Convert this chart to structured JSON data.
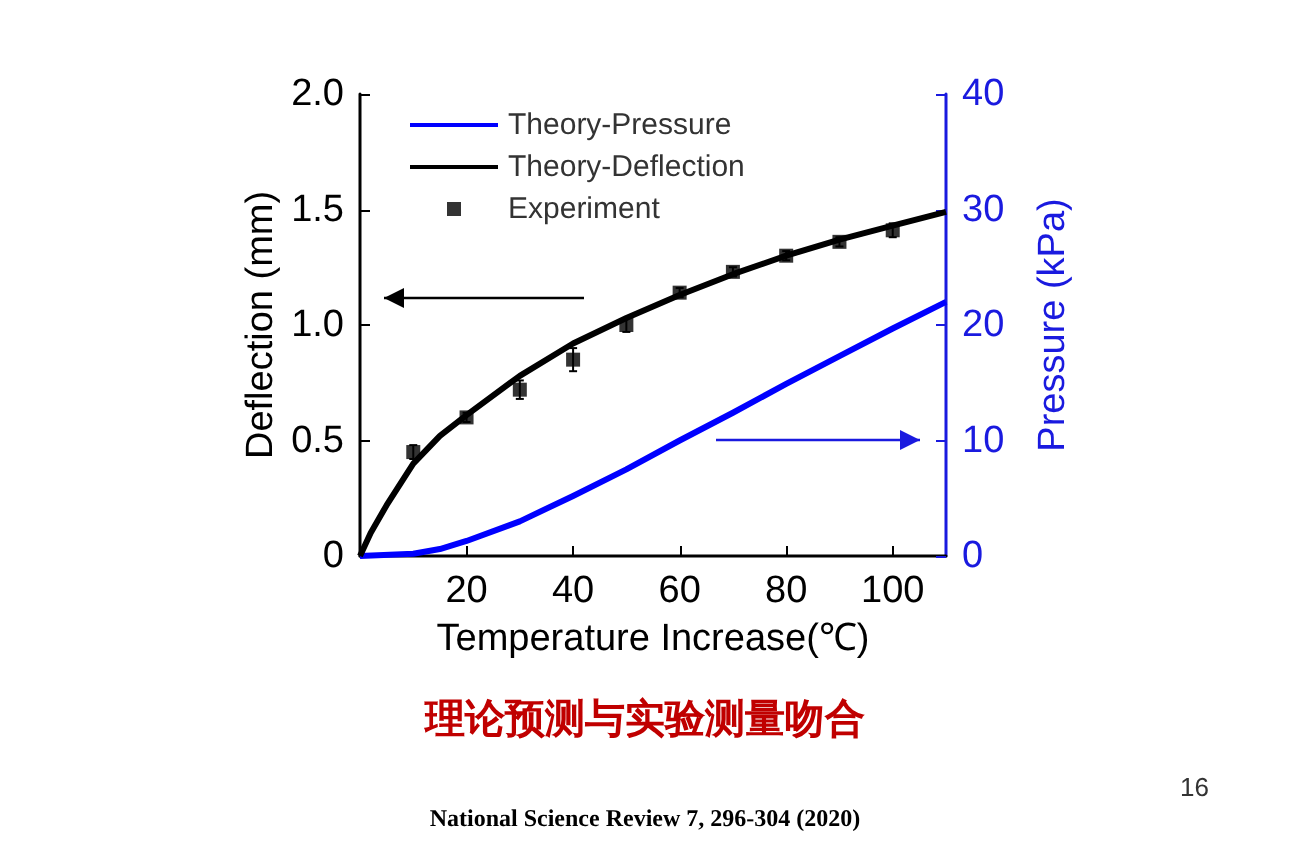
{
  "chart_data": {
    "type": "line",
    "xlabel": "Temperature Increase(℃)",
    "ylabel": "Deflection (mm)",
    "y2label": "Pressure (kPa)",
    "xlim": [
      0,
      110
    ],
    "xticks": [
      20,
      40,
      60,
      80,
      100
    ],
    "ylim": [
      0,
      2.0
    ],
    "yticks": [
      {
        "value": 0,
        "label": "0"
      },
      {
        "value": 0.5,
        "label": "0.5"
      },
      {
        "value": 1.0,
        "label": "1.0"
      },
      {
        "value": 1.5,
        "label": "1.5"
      },
      {
        "value": 2.0,
        "label": "2.0"
      }
    ],
    "y2lim": [
      0,
      40
    ],
    "y2ticks": [
      0,
      10,
      20,
      30,
      40
    ],
    "grid": false,
    "legend": "top left",
    "series": [
      {
        "name": "Theory-Pressure",
        "axis": "y2",
        "color": "#0000ff",
        "marker": "none",
        "line_style": "solid",
        "x": [
          0,
          10,
          15,
          20,
          30,
          40,
          50,
          60,
          70,
          80,
          90,
          100,
          110
        ],
        "values": [
          0,
          0.2,
          0.6,
          1.3,
          3,
          5.2,
          7.5,
          10,
          12.4,
          14.9,
          17.3,
          19.7,
          22
        ]
      },
      {
        "name": "Theory-Deflection",
        "color": "#000000",
        "marker": "none",
        "line_style": "solid",
        "x": [
          0,
          2,
          5,
          10,
          15,
          20,
          30,
          40,
          50,
          60,
          70,
          80,
          90,
          100,
          110
        ],
        "values": [
          0,
          0.1,
          0.22,
          0.4,
          0.52,
          0.61,
          0.78,
          0.92,
          1.03,
          1.13,
          1.22,
          1.3,
          1.37,
          1.43,
          1.49
        ]
      },
      {
        "name": "Experiment",
        "type": "scatter",
        "color": "#000000",
        "marker": "square",
        "x": [
          10,
          20,
          30,
          40,
          50,
          60,
          70,
          80,
          90,
          100
        ],
        "values": [
          0.45,
          0.6,
          0.72,
          0.85,
          1.0,
          1.14,
          1.23,
          1.3,
          1.36,
          1.41
        ],
        "errors": [
          0.03,
          0.02,
          0.04,
          0.05,
          0.03,
          0.02,
          0.02,
          0.02,
          0.02,
          0.03
        ]
      }
    ],
    "annotations": [
      "理论预测与实验测量吻合",
      "16",
      "National Science Review 7, 296-304 (2020)"
    ]
  }
}
